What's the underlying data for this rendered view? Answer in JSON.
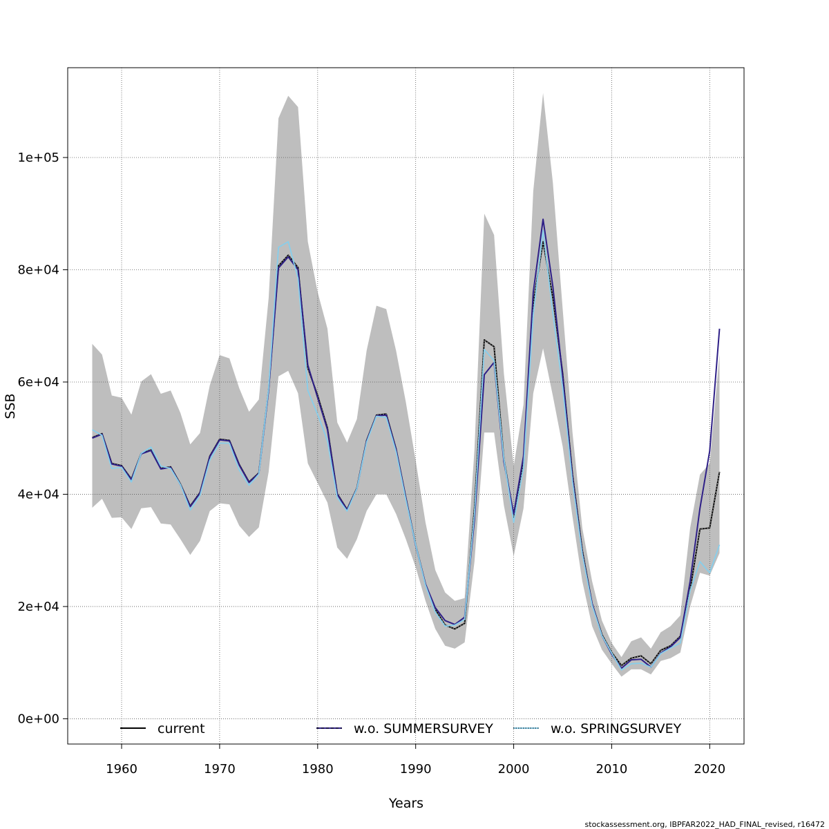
{
  "chart_data": {
    "type": "line",
    "title": "",
    "xlabel": "Years",
    "ylabel": "SSB",
    "xlim": [
      1954.5,
      2023.5
    ],
    "ylim": [
      -4500,
      116000
    ],
    "x_ticks": [
      1960,
      1970,
      1980,
      1990,
      2000,
      2010,
      2020
    ],
    "x_tick_labels": [
      "1960",
      "1970",
      "1980",
      "1990",
      "2000",
      "2010",
      "2020"
    ],
    "y_ticks": [
      0,
      20000,
      40000,
      60000,
      80000,
      100000
    ],
    "y_tick_labels": [
      "0e+00",
      "2e+04",
      "4e+04",
      "6e+04",
      "8e+04",
      "1e+05"
    ],
    "grid": true,
    "legend_position": "bottom",
    "x": [
      1957,
      1958,
      1959,
      1960,
      1961,
      1962,
      1963,
      1964,
      1965,
      1966,
      1967,
      1968,
      1969,
      1970,
      1971,
      1972,
      1973,
      1974,
      1975,
      1976,
      1977,
      1978,
      1979,
      1980,
      1981,
      1982,
      1983,
      1984,
      1985,
      1986,
      1987,
      1988,
      1989,
      1990,
      1991,
      1992,
      1993,
      1994,
      1995,
      1996,
      1997,
      1998,
      1999,
      2000,
      2001,
      2002,
      2003,
      2004,
      2005,
      2006,
      2007,
      2008,
      2009,
      2010,
      2011,
      2012,
      2013,
      2014,
      2015,
      2016,
      2017,
      2018,
      2019,
      2020,
      2021
    ],
    "band": {
      "color": "#bebebe",
      "upper": [
        66800,
        64900,
        57600,
        57200,
        54200,
        60100,
        61400,
        57900,
        58500,
        54500,
        48900,
        50900,
        59400,
        64800,
        64200,
        58900,
        54700,
        56900,
        75000,
        107000,
        111000,
        109000,
        85000,
        76000,
        69500,
        52800,
        49200,
        53400,
        65600,
        73600,
        73000,
        65600,
        56400,
        46000,
        35000,
        26500,
        22500,
        21000,
        21500,
        48000,
        90000,
        86200,
        61500,
        45000,
        56000,
        94000,
        111500,
        95500,
        73000,
        51000,
        34000,
        24500,
        17500,
        13500,
        11000,
        13800,
        14500,
        12500,
        15400,
        16500,
        18400,
        34000,
        43500,
        45500,
        65000
      ],
      "lower": [
        37600,
        39200,
        35800,
        35900,
        33800,
        37500,
        37700,
        34800,
        34600,
        32000,
        29200,
        31700,
        37000,
        38400,
        38200,
        34400,
        32400,
        34100,
        44000,
        61000,
        62000,
        58000,
        45500,
        42000,
        38500,
        30500,
        28500,
        32000,
        37000,
        40000,
        40000,
        36500,
        32000,
        27000,
        21000,
        16000,
        13000,
        12500,
        13600,
        28000,
        51000,
        51000,
        38000,
        29000,
        37500,
        58000,
        66000,
        57500,
        48500,
        36000,
        24500,
        16500,
        12300,
        9800,
        7500,
        8800,
        8800,
        7900,
        10300,
        10800,
        11800,
        20000,
        26000,
        25500,
        29500
      ]
    },
    "series": [
      {
        "name": "current",
        "color": "#000000",
        "values": [
          50100,
          50800,
          45500,
          45100,
          42700,
          47300,
          47900,
          44600,
          44900,
          41800,
          37900,
          40300,
          46800,
          49800,
          49600,
          45300,
          42200,
          43800,
          58800,
          80700,
          82600,
          80400,
          62500,
          57600,
          51800,
          40100,
          37300,
          41100,
          49600,
          54100,
          54300,
          48100,
          39400,
          31000,
          24000,
          19500,
          16700,
          16000,
          17000,
          37500,
          67500,
          66300,
          46300,
          36000,
          45500,
          74000,
          85000,
          75000,
          61500,
          43500,
          30000,
          20500,
          15000,
          11800,
          9500,
          10800,
          11200,
          9800,
          12200,
          13000,
          14700,
          23000,
          33800,
          34000,
          44000
        ]
      },
      {
        "name": "w.o. SUMMERSURVEY",
        "color": "#2e1f87",
        "values": [
          50000,
          50700,
          45400,
          45000,
          42600,
          47200,
          47800,
          44500,
          44800,
          41700,
          37800,
          40200,
          46700,
          49700,
          49500,
          45200,
          42100,
          43700,
          58600,
          80300,
          82300,
          80000,
          63000,
          57200,
          51500,
          40000,
          37200,
          41000,
          49500,
          54000,
          54100,
          48000,
          39300,
          30900,
          24000,
          19800,
          17500,
          16800,
          18100,
          35500,
          61300,
          63500,
          45800,
          36500,
          46800,
          76000,
          89000,
          77000,
          61000,
          43000,
          29500,
          20500,
          14800,
          11500,
          9000,
          10500,
          10600,
          9200,
          11700,
          12800,
          14500,
          24500,
          37500,
          47700,
          69500
        ]
      },
      {
        "name": "w.o. SPRINGSURVEY",
        "color": "#87ceeb",
        "values": [
          51500,
          50500,
          44600,
          44800,
          42200,
          47300,
          48400,
          45000,
          44600,
          41700,
          37200,
          39800,
          46100,
          49100,
          49100,
          44300,
          41600,
          43600,
          59000,
          84000,
          85000,
          78500,
          58500,
          54200,
          49500,
          39400,
          37000,
          41000,
          49300,
          53900,
          53700,
          47600,
          39000,
          31000,
          23800,
          19000,
          16500,
          16700,
          17700,
          36500,
          65800,
          63800,
          46300,
          35000,
          44800,
          72000,
          87000,
          72200,
          59000,
          42200,
          29300,
          20200,
          14800,
          11700,
          8700,
          9800,
          9900,
          9200,
          11600,
          12600,
          13500,
          22800,
          28000,
          26000,
          31000
        ]
      }
    ],
    "legend": [
      {
        "label": "current",
        "style": "solid-black"
      },
      {
        "label": "w.o. SUMMERSURVEY",
        "style": "solid-navy-dashed"
      },
      {
        "label": "w.o. SPRINGSURVEY",
        "style": "solid-skyblue-dotted"
      }
    ],
    "footer": "stockassessment.org, IBPFAR2022_HAD_FINAL_revised, r16472"
  }
}
